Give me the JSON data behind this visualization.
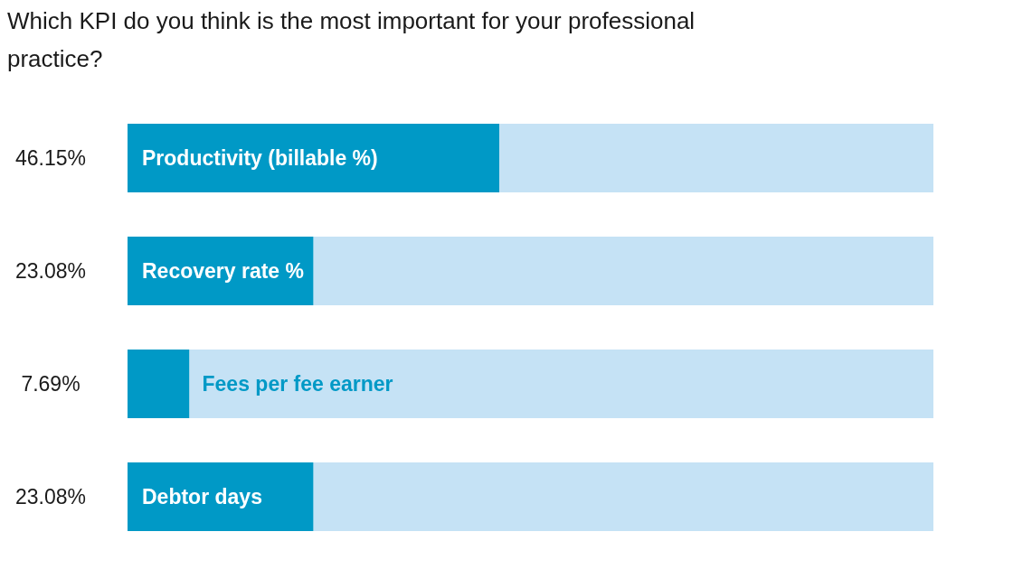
{
  "chart_data": {
    "type": "bar",
    "orientation": "horizontal",
    "stacked": true,
    "title": "Which KPI do you think is the most important for your professional practice?",
    "categories": [
      "Productivity (billable %)",
      "Recovery rate %",
      "Fees per fee earner",
      "Debtor days"
    ],
    "series": [
      {
        "color": "#0099c6",
        "values": [
          46.15,
          23.08,
          7.69,
          23.08
        ],
        "value_labels": [
          "46.15%",
          "23.08%",
          "7.69%",
          "23.08%"
        ]
      },
      {
        "color": "#c5e2f5",
        "values": [
          53.85,
          76.92,
          92.31,
          76.92
        ]
      }
    ],
    "xlim": [
      0,
      100
    ]
  }
}
